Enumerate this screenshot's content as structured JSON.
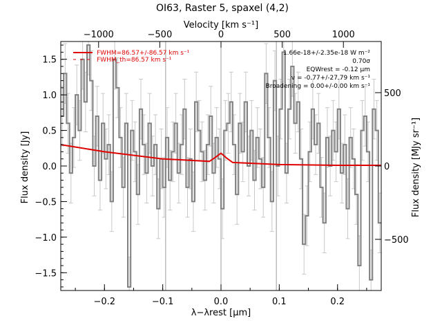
{
  "chart_data": {
    "type": "line",
    "title": "OI63, Raster 5, spaxel (4,2)",
    "xlabel": "λ−λrest [µm]",
    "ylabel": "Flux density [Jy]",
    "top_xlabel": "Velocity [km s⁻¹]",
    "right_ylabel": "Flux density [MJy sr⁻¹]",
    "xlim": [
      -0.275,
      0.275
    ],
    "ylim": [
      -1.75,
      1.75
    ],
    "x_ticks": [
      -0.2,
      -0.1,
      0.0,
      0.1,
      0.2
    ],
    "x_tick_labels": [
      "−0.2",
      "−0.1",
      "0.0",
      "0.1",
      "0.2"
    ],
    "y_ticks": [
      -1.5,
      -1.0,
      -0.5,
      0.0,
      0.5,
      1.0,
      1.5
    ],
    "y_tick_labels": [
      "−1.5",
      "−1.0",
      "−0.5",
      "0.0",
      "0.5",
      "1.0",
      "1.5"
    ],
    "top_ticks": [
      -1000,
      -500,
      0,
      500,
      1000
    ],
    "top_tick_labels": [
      "−1000",
      "−500",
      "0",
      "500",
      "1000"
    ],
    "right_ticks": [
      -500,
      0,
      500
    ],
    "right_tick_labels": [
      "−500",
      "0",
      "500"
    ],
    "right_scale_jy_to_mjysr": 485,
    "velocity_per_micron": 4760,
    "vertical_lines": [
      -0.095,
      0.0,
      0.095
    ],
    "legend": [
      {
        "label": "FWHM=86.57+/-86.57 km s⁻¹",
        "style": "solid",
        "color": "#e00000"
      },
      {
        "label": "FWHM_th=86.57 km s⁻¹",
        "style": "dashed",
        "color": "#e00000"
      }
    ],
    "annotations": [
      "1.66e-18+/-2.35e-18 W m⁻²",
      "0.70σ",
      "EQWrest = -0.12 µm",
      "v = -0.77+/-27.79 km s⁻¹",
      "Broadening = 0.00+/-0.00 km s⁻¹"
    ],
    "series": [
      {
        "style": "step",
        "color": "#808080",
        "x": [
          -0.275,
          -0.27,
          -0.265,
          -0.26,
          -0.255,
          -0.25,
          -0.245,
          -0.24,
          -0.235,
          -0.23,
          -0.225,
          -0.22,
          -0.215,
          -0.21,
          -0.205,
          -0.2,
          -0.195,
          -0.19,
          -0.185,
          -0.18,
          -0.175,
          -0.17,
          -0.165,
          -0.16,
          -0.155,
          -0.15,
          -0.145,
          -0.14,
          -0.135,
          -0.13,
          -0.125,
          -0.12,
          -0.115,
          -0.11,
          -0.105,
          -0.1,
          -0.095,
          -0.09,
          -0.085,
          -0.08,
          -0.075,
          -0.07,
          -0.065,
          -0.06,
          -0.055,
          -0.05,
          -0.045,
          -0.04,
          -0.035,
          -0.03,
          -0.025,
          -0.02,
          -0.015,
          -0.01,
          -0.005,
          0.0,
          0.005,
          0.01,
          0.015,
          0.02,
          0.025,
          0.03,
          0.035,
          0.04,
          0.045,
          0.05,
          0.055,
          0.06,
          0.065,
          0.07,
          0.075,
          0.08,
          0.085,
          0.09,
          0.095,
          0.1,
          0.105,
          0.11,
          0.115,
          0.12,
          0.125,
          0.13,
          0.135,
          0.14,
          0.145,
          0.15,
          0.155,
          0.16,
          0.165,
          0.17,
          0.175,
          0.18,
          0.185,
          0.19,
          0.195,
          0.2,
          0.205,
          0.21,
          0.215,
          0.22,
          0.225,
          0.23,
          0.235,
          0.24,
          0.245,
          0.25,
          0.255,
          0.26,
          0.265,
          0.27
        ],
        "y": [
          0.7,
          1.3,
          0.6,
          -0.1,
          0.4,
          1.0,
          0.5,
          1.5,
          0.9,
          1.7,
          1.2,
          0.0,
          0.7,
          -0.2,
          0.6,
          0.1,
          0.3,
          -0.5,
          1.5,
          1.1,
          0.4,
          -0.3,
          0.6,
          -1.7,
          0.5,
          0.2,
          -0.4,
          0.8,
          0.3,
          -0.1,
          0.6,
          0.0,
          0.3,
          -0.6,
          0.1,
          -0.3,
          0.4,
          -0.2,
          0.2,
          0.6,
          -0.1,
          0.3,
          0.8,
          -0.3,
          0.1,
          -0.5,
          0.9,
          0.5,
          0.2,
          -0.2,
          0.3,
          0.7,
          -0.1,
          0.4,
          0.1,
          -0.6,
          0.5,
          0.6,
          0.9,
          0.3,
          -0.4,
          0.6,
          0.2,
          0.9,
          0.0,
          0.5,
          -0.2,
          0.4,
          0.1,
          -0.3,
          1.3,
          0.4,
          -0.5,
          1.2,
          0.0,
          0.8,
          1.6,
          -0.1,
          0.8,
          1.4,
          0.6,
          0.9,
          0.1,
          -1.1,
          -0.7,
          0.2,
          0.8,
          0.3,
          0.6,
          -0.3,
          -0.8,
          0.4,
          0.0,
          0.5,
          0.2,
          0.8,
          -0.1,
          0.3,
          -0.6,
          0.4,
          0.1,
          -0.4,
          -1.4,
          0.5,
          0.7,
          0.2,
          -1.6,
          0.8,
          0.5,
          -0.8
        ],
        "err": 0.42
      },
      {
        "style": "solid",
        "color": "#e00000",
        "x": [
          -0.275,
          -0.2,
          -0.1,
          -0.02,
          -0.01,
          0.0,
          0.01,
          0.02,
          0.1,
          0.2,
          0.275
        ],
        "y": [
          0.3,
          0.2,
          0.1,
          0.065,
          0.12,
          0.18,
          0.11,
          0.05,
          0.02,
          0.01,
          0.01
        ]
      }
    ]
  }
}
